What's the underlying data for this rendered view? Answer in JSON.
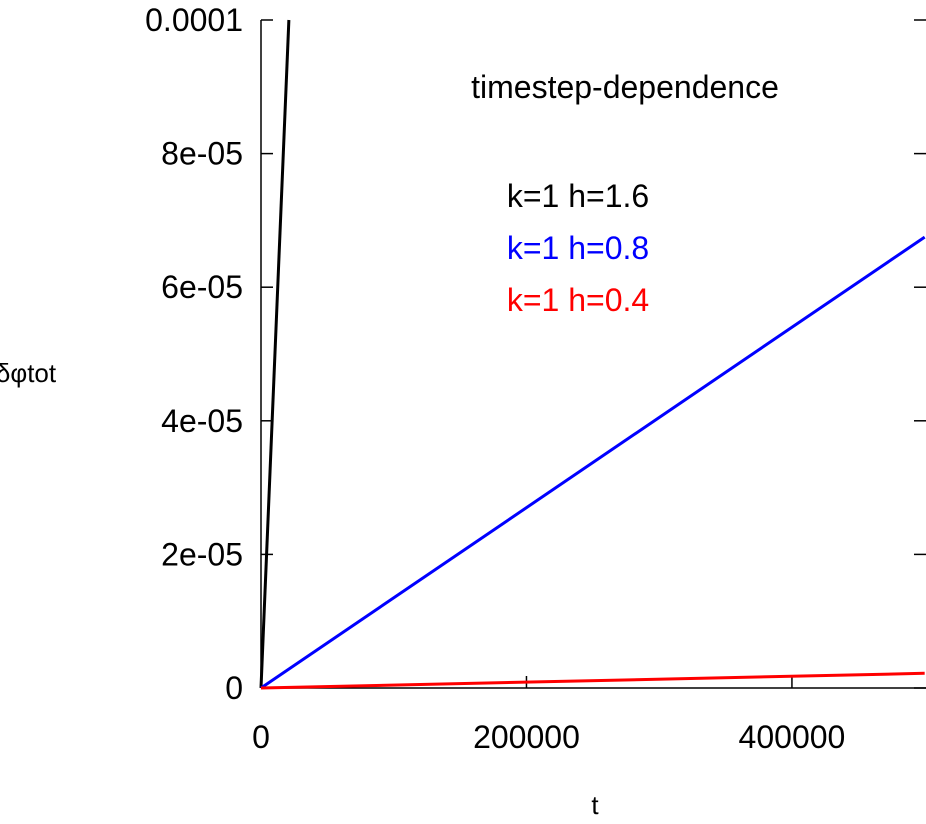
{
  "chart_data": {
    "type": "line",
    "title": "timestep-dependence",
    "xlabel": "t",
    "ylabel": "δφtot",
    "xlim": [
      0,
      500000
    ],
    "ylim": [
      0,
      0.0001
    ],
    "x_ticks": [
      "0",
      "200000",
      "400000"
    ],
    "y_ticks": [
      "0",
      "2e-05",
      "4e-05",
      "6e-05",
      "8e-05",
      "0.0001"
    ],
    "x_tick_values": [
      0,
      200000,
      400000
    ],
    "y_tick_values": [
      0,
      2e-05,
      4e-05,
      6e-05,
      8e-05,
      0.0001
    ],
    "grid": false,
    "legend_position": "top-center",
    "series": [
      {
        "name": "k=1 h=1.6",
        "color": "#000000",
        "x": [
          0,
          21000
        ],
        "y": [
          0,
          0.0001
        ]
      },
      {
        "name": "k=1 h=0.8",
        "color": "#0000ff",
        "x": [
          0,
          500000
        ],
        "y": [
          0,
          6.75e-05
        ]
      },
      {
        "name": "k=1 h=0.4",
        "color": "#ff0000",
        "x": [
          0,
          500000
        ],
        "y": [
          0,
          2.2e-06
        ]
      }
    ]
  }
}
